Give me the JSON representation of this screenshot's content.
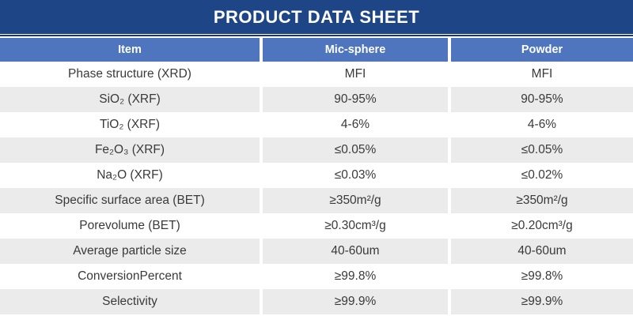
{
  "title": "PRODUCT DATA SHEET",
  "colors": {
    "title_bar_bg": "#1E4687",
    "header_row_bg": "#4E75BE",
    "alt_row_bg": "#EBEBEB",
    "top_rule": "#1F3864",
    "header_text": "#FFFFFF",
    "body_text": "#3A3A3A"
  },
  "table": {
    "columns": [
      "Item",
      "Mic-sphere",
      "Powder"
    ],
    "rows": [
      {
        "item": "Phase structure (XRD)",
        "mic_sphere": "MFI",
        "powder": "MFI"
      },
      {
        "item": "SiO₂ (XRF)",
        "mic_sphere": "90-95%",
        "powder": "90-95%"
      },
      {
        "item": "TiO₂ (XRF)",
        "mic_sphere": "4-6%",
        "powder": "4-6%"
      },
      {
        "item": "Fe₂O₃ (XRF)",
        "mic_sphere": "≤0.05%",
        "powder": "≤0.05%"
      },
      {
        "item": "Na₂O (XRF)",
        "mic_sphere": "≤0.03%",
        "powder": "≤0.02%"
      },
      {
        "item": "Specific surface area (BET)",
        "mic_sphere": "≥350m²/g",
        "powder": "≥350m²/g"
      },
      {
        "item": "Porevolume (BET)",
        "mic_sphere": "≥0.30cm³/g",
        "powder": "≥0.20cm³/g"
      },
      {
        "item": "Average particle size",
        "mic_sphere": "40-60um",
        "powder": "40-60um"
      },
      {
        "item": "ConversionPercent",
        "mic_sphere": "≥99.8%",
        "powder": "≥99.8%"
      },
      {
        "item": "Selectivity",
        "mic_sphere": "≥99.9%",
        "powder": "≥99.9%"
      }
    ]
  }
}
